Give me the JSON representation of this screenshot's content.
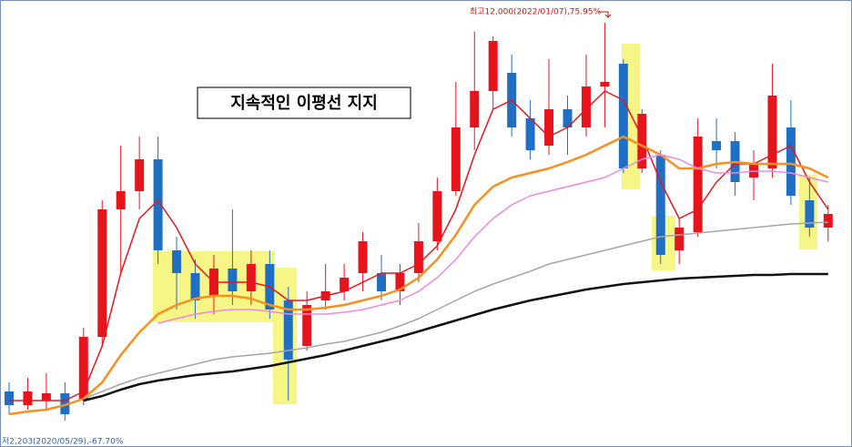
{
  "chart_data": {
    "type": "candlestick",
    "title": "지속적인 이평선 지지",
    "annotations": [
      "최고12,000(2022/01/07),75.95%",
      "저2,203(2020/05/29),-67.70%"
    ],
    "up_color": "#e8141c",
    "down_color": "#1f6fc5",
    "ylim": [
      2700,
      12500
    ],
    "open": [
      3900,
      3600,
      3700,
      3860,
      3700,
      5100,
      7900,
      8300,
      9000,
      7000,
      6500,
      6000,
      6600,
      6100,
      6700,
      5900,
      4900,
      5900,
      6100,
      6500,
      6500,
      6100,
      6500,
      7200,
      8300,
      9700,
      10500,
      10900,
      9900,
      9300,
      10100,
      9700,
      10600,
      11100,
      8800,
      9100,
      7000,
      7400,
      9400,
      9400,
      8600,
      8800,
      9700,
      8100,
      7500
    ],
    "high": [
      4100,
      4200,
      4300,
      4100,
      5300,
      8100,
      9300,
      9500,
      9500,
      7300,
      6800,
      6900,
      7900,
      7000,
      7000,
      6200,
      6100,
      6700,
      6700,
      7400,
      6900,
      6700,
      7600,
      8600,
      10700,
      11800,
      11700,
      11300,
      10300,
      11200,
      10400,
      11300,
      12000,
      11200,
      10100,
      9200,
      7700,
      9900,
      9900,
      9600,
      9200,
      11100,
      10300,
      8600,
      8000
    ],
    "low": [
      3400,
      3500,
      3500,
      3260,
      3600,
      4900,
      6500,
      7900,
      6700,
      5700,
      5500,
      5600,
      5800,
      5800,
      5500,
      3700,
      4800,
      5700,
      5900,
      6100,
      5900,
      5800,
      6300,
      7000,
      8200,
      9200,
      10100,
      9500,
      9000,
      9100,
      9100,
      9500,
      9700,
      8700,
      8700,
      6700,
      6700,
      7300,
      8800,
      8200,
      8100,
      8600,
      8000,
      7300,
      7200
    ],
    "close": [
      3600,
      3900,
      3860,
      3400,
      5100,
      7900,
      8300,
      9000,
      7000,
      6500,
      5900,
      6600,
      6100,
      6700,
      5700,
      4600,
      5800,
      6100,
      6400,
      7200,
      6100,
      6500,
      7200,
      8300,
      9700,
      10500,
      11600,
      9700,
      9200,
      10100,
      9700,
      10600,
      10700,
      8800,
      10000,
      6900,
      7500,
      9500,
      9200,
      8500,
      8900,
      10400,
      8200,
      7500,
      7800
    ],
    "moving_averages": [
      {
        "color": "#e8141c",
        "values": [
          3700,
          3700,
          3700,
          3700,
          3900,
          4900,
          6500,
          7700,
          8100,
          7500,
          6700,
          6300,
          6300,
          6300,
          6200,
          5900,
          5900,
          6000,
          6100,
          6300,
          6500,
          6500,
          6700,
          7100,
          7900,
          9100,
          10100,
          10300,
          9900,
          9500,
          9700,
          10100,
          10500,
          10300,
          9500,
          8500,
          7700,
          7900,
          8500,
          8900,
          8900,
          9100,
          9300,
          8500,
          7900
        ]
      },
      {
        "color": "#f7901e",
        "values": [
          3400,
          3460,
          3500,
          3600,
          3740,
          4100,
          4700,
          5200,
          5600,
          5800,
          5940,
          6000,
          6000,
          5940,
          5800,
          5700,
          5700,
          5740,
          5800,
          5900,
          6000,
          6140,
          6400,
          6800,
          7340,
          8000,
          8400,
          8600,
          8700,
          8800,
          8940,
          9100,
          9300,
          9500,
          9300,
          9100,
          8800,
          8800,
          8900,
          8940,
          8900,
          8900,
          8900,
          8800,
          8600
        ]
      },
      {
        "color": "#f088e0",
        "values": [
          null,
          null,
          null,
          null,
          null,
          null,
          null,
          null,
          5400,
          5500,
          5600,
          5660,
          5700,
          5700,
          5660,
          5600,
          5600,
          5600,
          5640,
          5700,
          5800,
          5900,
          6100,
          6400,
          6800,
          7300,
          7700,
          8000,
          8200,
          8300,
          8400,
          8500,
          8600,
          8800,
          9000,
          9100,
          9000,
          8800,
          8700,
          8700,
          8740,
          8740,
          8700,
          8600,
          8500
        ]
      },
      {
        "color": "#a6a6a6",
        "values": [
          null,
          null,
          null,
          null,
          3740,
          3900,
          4060,
          4200,
          4300,
          4400,
          4500,
          4600,
          4660,
          4700,
          4740,
          4800,
          4860,
          4940,
          5000,
          5100,
          5200,
          5340,
          5500,
          5700,
          5900,
          6100,
          6260,
          6400,
          6540,
          6700,
          6800,
          6900,
          7000,
          7100,
          7200,
          7300,
          7340,
          7380,
          7420,
          7460,
          7500,
          7540,
          7580,
          7600,
          7620
        ]
      },
      {
        "color": "#111111",
        "values": [
          null,
          null,
          null,
          null,
          3700,
          3800,
          3940,
          4060,
          4140,
          4200,
          4260,
          4300,
          4340,
          4400,
          4460,
          4540,
          4620,
          4700,
          4800,
          4900,
          5000,
          5100,
          5220,
          5340,
          5460,
          5580,
          5700,
          5800,
          5900,
          5980,
          6060,
          6140,
          6200,
          6260,
          6300,
          6340,
          6380,
          6400,
          6420,
          6440,
          6460,
          6460,
          6480,
          6480,
          6480
        ]
      }
    ]
  }
}
